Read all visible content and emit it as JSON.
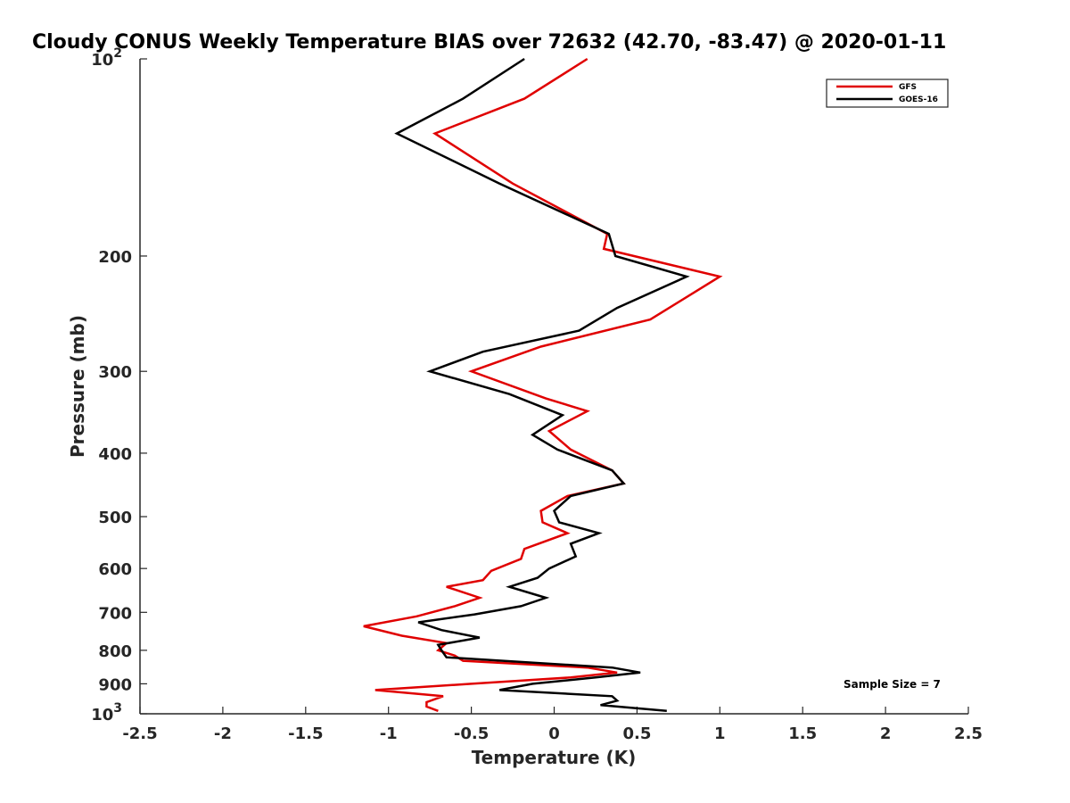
{
  "chart_data": {
    "type": "line",
    "title": "Cloudy CONUS Weekly Temperature BIAS over 72632 (42.70, -83.47) @ 2020-01-11",
    "xlabel": "Temperature (K)",
    "ylabel": "Pressure (mb)",
    "xlim": [
      -2.5,
      2.5
    ],
    "ylim": [
      1000,
      100
    ],
    "yscale": "log",
    "xticks": [
      -2.5,
      -2,
      -1.5,
      -1,
      -0.5,
      0,
      0.5,
      1,
      1.5,
      2,
      2.5
    ],
    "xtick_labels": [
      "-2.5",
      "-2",
      "-1.5",
      "-1",
      "-0.5",
      "0",
      "0.5",
      "1",
      "1.5",
      "2",
      "2.5"
    ],
    "yticks": [
      {
        "value": 100,
        "base": "10",
        "exp": "2"
      },
      {
        "value": 200,
        "base": "200",
        "exp": ""
      },
      {
        "value": 300,
        "base": "300",
        "exp": ""
      },
      {
        "value": 400,
        "base": "400",
        "exp": ""
      },
      {
        "value": 500,
        "base": "500",
        "exp": ""
      },
      {
        "value": 600,
        "base": "600",
        "exp": ""
      },
      {
        "value": 700,
        "base": "700",
        "exp": ""
      },
      {
        "value": 800,
        "base": "800",
        "exp": ""
      },
      {
        "value": 900,
        "base": "900",
        "exp": ""
      },
      {
        "value": 1000,
        "base": "10",
        "exp": "3"
      }
    ],
    "grid": false,
    "legend_position": "top-right",
    "annotation": "Sample Size = 7",
    "series": [
      {
        "name": "GFS",
        "color": "#e00000",
        "points": [
          [
            0.2,
            100
          ],
          [
            -0.18,
            115
          ],
          [
            -0.72,
            130
          ],
          [
            -0.25,
            155
          ],
          [
            0.32,
            185
          ],
          [
            0.3,
            195
          ],
          [
            1.0,
            215
          ],
          [
            0.58,
            250
          ],
          [
            -0.08,
            275
          ],
          [
            -0.5,
            300
          ],
          [
            -0.05,
            330
          ],
          [
            0.2,
            345
          ],
          [
            -0.03,
            370
          ],
          [
            0.1,
            395
          ],
          [
            0.35,
            425
          ],
          [
            0.42,
            445
          ],
          [
            0.08,
            465
          ],
          [
            -0.08,
            490
          ],
          [
            -0.07,
            510
          ],
          [
            0.08,
            530
          ],
          [
            -0.18,
            560
          ],
          [
            -0.2,
            580
          ],
          [
            -0.38,
            605
          ],
          [
            -0.43,
            625
          ],
          [
            -0.65,
            640
          ],
          [
            -0.45,
            665
          ],
          [
            -0.6,
            685
          ],
          [
            -0.83,
            710
          ],
          [
            -1.15,
            735
          ],
          [
            -0.92,
            760
          ],
          [
            -0.65,
            780
          ],
          [
            -0.7,
            800
          ],
          [
            -0.6,
            815
          ],
          [
            -0.55,
            830
          ],
          [
            0.2,
            850
          ],
          [
            0.38,
            865
          ],
          [
            0.1,
            880
          ],
          [
            -0.5,
            900
          ],
          [
            -1.08,
            920
          ],
          [
            -0.67,
            940
          ],
          [
            -0.77,
            960
          ],
          [
            -0.77,
            975
          ],
          [
            -0.7,
            990
          ]
        ]
      },
      {
        "name": "GOES-16",
        "color": "#000000",
        "points": [
          [
            -0.18,
            100
          ],
          [
            -0.55,
            115
          ],
          [
            -0.95,
            130
          ],
          [
            -0.33,
            155
          ],
          [
            0.33,
            185
          ],
          [
            0.37,
            200
          ],
          [
            0.8,
            215
          ],
          [
            0.38,
            240
          ],
          [
            0.15,
            260
          ],
          [
            -0.43,
            280
          ],
          [
            -0.75,
            300
          ],
          [
            -0.27,
            325
          ],
          [
            0.05,
            350
          ],
          [
            -0.13,
            375
          ],
          [
            0.02,
            395
          ],
          [
            0.35,
            425
          ],
          [
            0.42,
            445
          ],
          [
            0.1,
            465
          ],
          [
            0.0,
            490
          ],
          [
            0.03,
            510
          ],
          [
            0.27,
            530
          ],
          [
            0.1,
            550
          ],
          [
            0.13,
            575
          ],
          [
            -0.03,
            600
          ],
          [
            -0.1,
            620
          ],
          [
            -0.27,
            640
          ],
          [
            -0.05,
            665
          ],
          [
            -0.2,
            685
          ],
          [
            -0.48,
            705
          ],
          [
            -0.82,
            725
          ],
          [
            -0.68,
            745
          ],
          [
            -0.45,
            765
          ],
          [
            -0.7,
            785
          ],
          [
            -0.68,
            800
          ],
          [
            -0.65,
            820
          ],
          [
            0.35,
            850
          ],
          [
            0.52,
            865
          ],
          [
            0.25,
            880
          ],
          [
            -0.13,
            900
          ],
          [
            -0.33,
            920
          ],
          [
            0.35,
            940
          ],
          [
            0.38,
            955
          ],
          [
            0.28,
            970
          ],
          [
            0.68,
            990
          ]
        ]
      }
    ]
  }
}
